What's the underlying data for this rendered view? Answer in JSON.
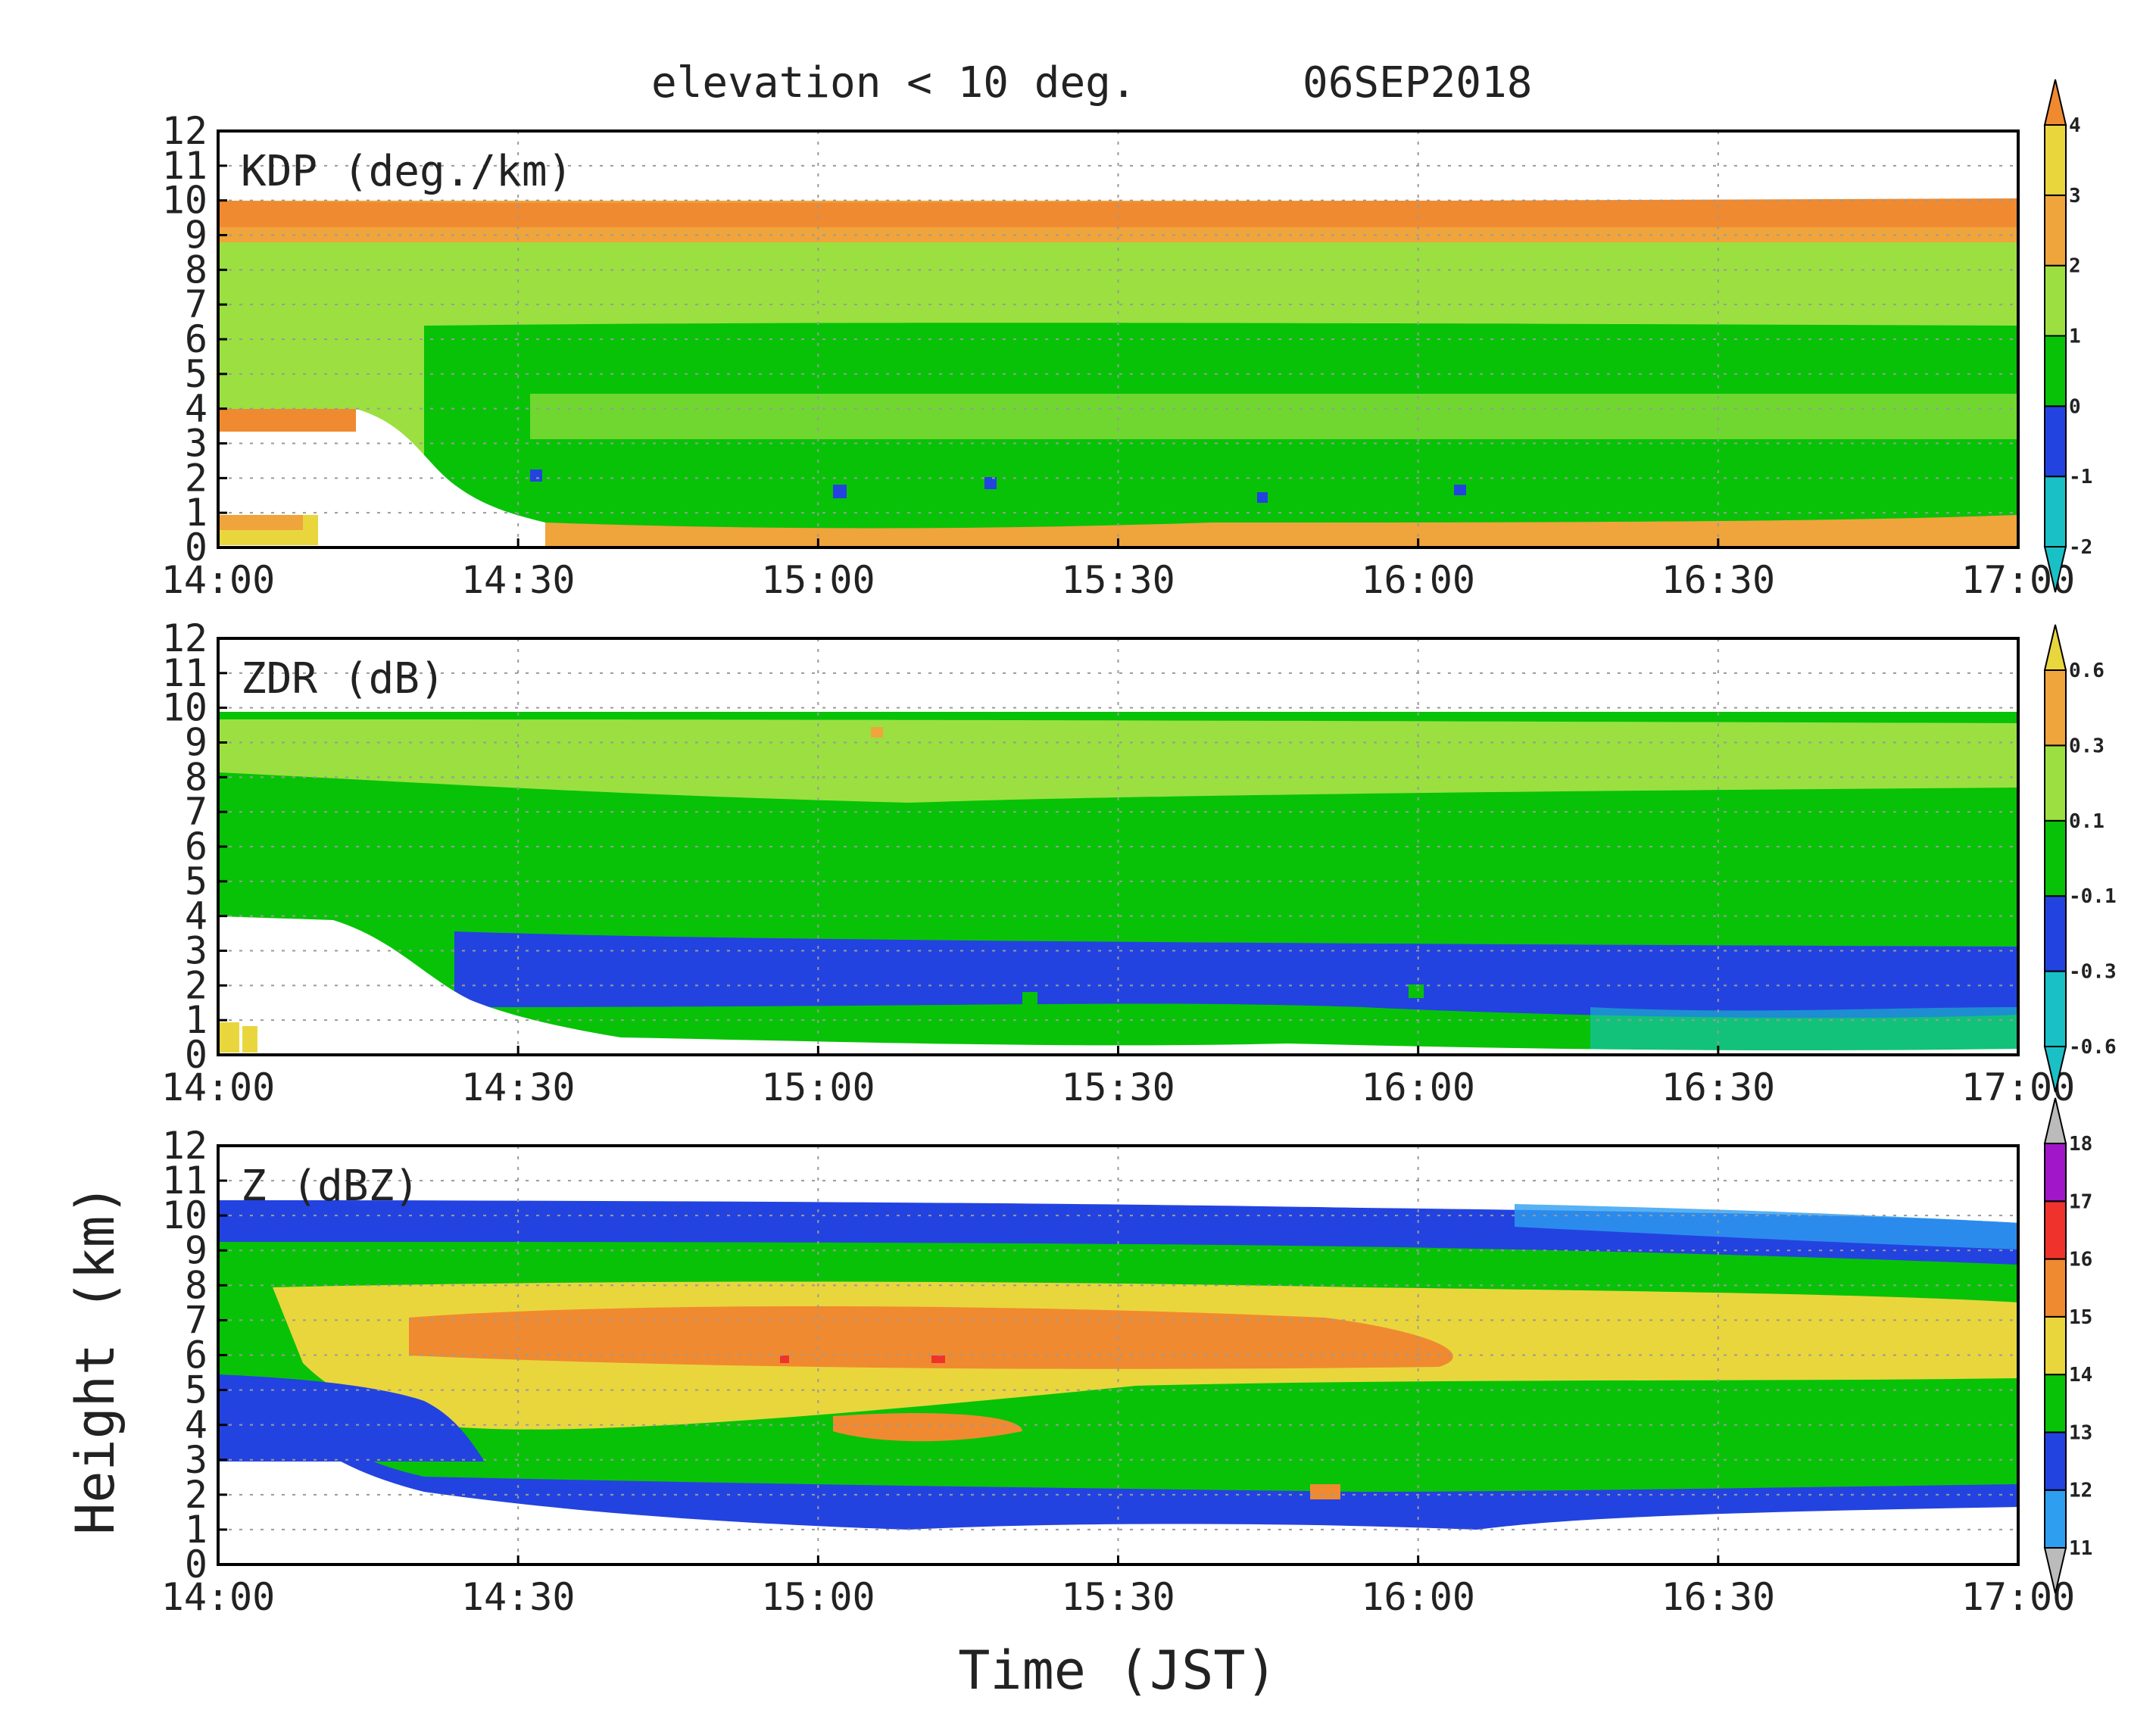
{
  "figure": {
    "title_left": "elevation < 10 deg.",
    "title_right": "06SEP2018",
    "xlabel": "Time (JST)",
    "ylabel": "Height (km)",
    "x_ticks": [
      "14:00",
      "14:30",
      "15:00",
      "15:30",
      "16:00",
      "16:30",
      "17:00"
    ],
    "y_ticks": [
      "0",
      "1",
      "2",
      "3",
      "4",
      "5",
      "6",
      "7",
      "8",
      "9",
      "10",
      "11",
      "12"
    ]
  },
  "chart_data": [
    {
      "type": "heatmap",
      "title": "KDP (deg./km)",
      "x_range": [
        "14:00",
        "17:00"
      ],
      "ylim": [
        0,
        12
      ],
      "grid": true,
      "colorbar": {
        "ticks": [
          "-2",
          "-1",
          "0",
          "1",
          "2",
          "3",
          "4"
        ],
        "colors": [
          "#19c1c6",
          "#2343e0",
          "#08c208",
          "#9be040",
          "#f0a43c",
          "#e9d63d"
        ],
        "over_color": "#f08a30",
        "under_color": "#19c1c6"
      },
      "bands": [
        {
          "height_km": [
            9,
            10
          ],
          "value": "2 to 4"
        },
        {
          "height_km": [
            7,
            9
          ],
          "value": "1 to 3"
        },
        {
          "height_km": [
            4,
            7
          ],
          "value": "0 to 1"
        },
        {
          "height_km": [
            1,
            4
          ],
          "value": "0 to 1"
        },
        {
          "height_km": [
            0,
            1
          ],
          "value": "1 to 3"
        }
      ]
    },
    {
      "type": "heatmap",
      "title": "ZDR (dB)",
      "x_range": [
        "14:00",
        "17:00"
      ],
      "ylim": [
        0,
        12
      ],
      "grid": true,
      "colorbar": {
        "ticks": [
          "-0.6",
          "-0.3",
          "-0.1",
          "0.1",
          "0.3",
          "0.6"
        ],
        "colors": [
          "#19c1c6",
          "#2343e0",
          "#08c208",
          "#9be040",
          "#f0a43c"
        ],
        "over_color": "#e9d63d",
        "under_color": "#19c1c6"
      },
      "bands": [
        {
          "height_km": [
            8,
            10
          ],
          "value": "0.1 to 0.3"
        },
        {
          "height_km": [
            3.5,
            8
          ],
          "value": "-0.1 to 0.1"
        },
        {
          "height_km": [
            0.5,
            3.5
          ],
          "value": "-0.3 to -0.1"
        },
        {
          "height_km": [
            0,
            1
          ],
          "value": "-0.6 to -0.3"
        }
      ]
    },
    {
      "type": "heatmap",
      "title": "Z (dBZ)",
      "x_range": [
        "14:00",
        "17:00"
      ],
      "ylim": [
        0,
        12
      ],
      "grid": true,
      "colorbar": {
        "ticks": [
          "11",
          "12",
          "13",
          "14",
          "15",
          "16",
          "17",
          "18"
        ],
        "colors": [
          "#2d9ef0",
          "#2343e0",
          "#08c208",
          "#e9d63d",
          "#f08a30",
          "#f0322d",
          "#a016c8"
        ],
        "over_color": "#bbbbbb",
        "under_color": "#bbbbbb"
      },
      "bands": [
        {
          "height_km": [
            9.5,
            10.5
          ],
          "value": "11 to 13"
        },
        {
          "height_km": [
            8,
            9.5
          ],
          "value": "13 to 14"
        },
        {
          "height_km": [
            6,
            8
          ],
          "value": "14 to 15"
        },
        {
          "height_km": [
            6,
            7.5
          ],
          "value": "15 to 16"
        },
        {
          "height_km": [
            2.5,
            6
          ],
          "value": "13 to 15"
        },
        {
          "height_km": [
            1.5,
            3
          ],
          "value": "11 to 13"
        }
      ]
    }
  ]
}
